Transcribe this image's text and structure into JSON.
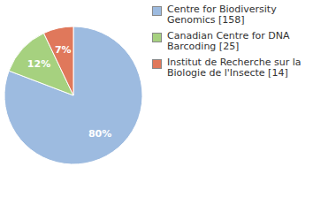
{
  "chart_data": {
    "type": "pie",
    "categories": [
      "Centre for Biodiversity Genomics [158]",
      "Canadian Centre for DNA Barcoding [25]",
      "Institut de Recherche sur la Biologie de l'Insecte [14]"
    ],
    "values": [
      80,
      12,
      7
    ],
    "value_labels": [
      "80%",
      "12%",
      "7%"
    ],
    "colors": [
      "#9dbbe0",
      "#a6d17f",
      "#e0785b"
    ],
    "data_labels": true,
    "legend": "right"
  }
}
